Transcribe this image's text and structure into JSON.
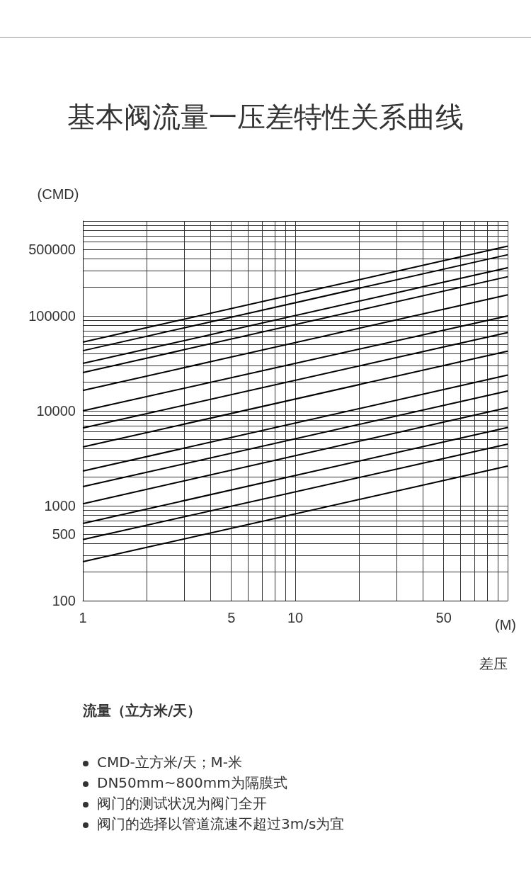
{
  "chart_data": {
    "type": "line",
    "title": "基本阀流量一压差特性关系曲线",
    "xlabel": "(M)",
    "ylabel": "(CMD)",
    "log": "xy",
    "grid": true,
    "marker": "none",
    "line_style": "solid",
    "x": [
      1,
      100
    ],
    "xlim": [
      1,
      100
    ],
    "xticks": [
      1,
      {
        "value": 2,
        "label": null
      },
      {
        "value": 3,
        "label": null
      },
      {
        "value": 4,
        "label": null
      },
      5,
      {
        "value": 6,
        "label": null
      },
      {
        "value": 7,
        "label": null
      },
      {
        "value": 8,
        "label": null
      },
      {
        "value": 9,
        "label": null
      },
      10,
      {
        "value": 20,
        "label": null
      },
      {
        "value": 30,
        "label": null
      },
      {
        "value": 40,
        "label": null
      },
      50,
      {
        "value": 60,
        "label": null
      },
      {
        "value": 70,
        "label": null
      },
      {
        "value": 80,
        "label": null
      },
      {
        "value": 90,
        "label": null
      },
      {
        "value": 100,
        "label": null
      }
    ],
    "ylim": [
      100,
      1000000
    ],
    "yticks": [
      100,
      {
        "value": 200,
        "label": null
      },
      {
        "value": 300,
        "label": null
      },
      {
        "value": 400,
        "label": null
      },
      500,
      {
        "value": 600,
        "label": null
      },
      {
        "value": 700,
        "label": null
      },
      {
        "value": 800,
        "label": null
      },
      {
        "value": 900,
        "label": null
      },
      1000,
      {
        "value": 2000,
        "label": null
      },
      {
        "value": 3000,
        "label": null
      },
      {
        "value": 4000,
        "label": null
      },
      {
        "value": 5000,
        "label": null
      },
      {
        "value": 6000,
        "label": null
      },
      {
        "value": 7000,
        "label": null
      },
      {
        "value": 8000,
        "label": null
      },
      {
        "value": 9000,
        "label": null
      },
      10000,
      {
        "value": 20000,
        "label": null
      },
      {
        "value": 30000,
        "label": null
      },
      {
        "value": 40000,
        "label": null
      },
      {
        "value": 50000,
        "label": null
      },
      {
        "value": 60000,
        "label": null
      },
      {
        "value": 70000,
        "label": null
      },
      {
        "value": 80000,
        "label": null
      },
      {
        "value": 90000,
        "label": null
      },
      100000,
      {
        "value": 200000,
        "label": null
      },
      {
        "value": 300000,
        "label": null
      },
      {
        "value": 400000,
        "label": null
      },
      500000,
      {
        "value": 600000,
        "label": null
      },
      {
        "value": 700000,
        "label": null
      },
      {
        "value": 800000,
        "label": null
      },
      {
        "value": 900000,
        "label": null
      },
      {
        "value": 1000000,
        "label": null
      }
    ],
    "series": [
      {
        "color": "#000000",
        "values": [
          53000,
          543000
        ]
      },
      {
        "color": "#000000",
        "values": [
          43000,
          441000
        ]
      },
      {
        "color": "#000000",
        "values": [
          31600,
          322000
        ]
      },
      {
        "color": "#000000",
        "values": [
          25300,
          259000
        ]
      },
      {
        "color": "#000000",
        "values": [
          16400,
          167000
        ]
      },
      {
        "color": "#000000",
        "values": [
          10000,
          100000
        ]
      },
      {
        "color": "#000000",
        "values": [
          6600,
          66700
        ]
      },
      {
        "color": "#000000",
        "values": [
          4160,
          42600
        ]
      },
      {
        "color": "#000000",
        "values": [
          2320,
          23800
        ]
      },
      {
        "color": "#000000",
        "values": [
          1590,
          16200
        ]
      },
      {
        "color": "#000000",
        "values": [
          1050,
          10800
        ]
      },
      {
        "color": "#000000",
        "values": [
          650,
          6670
        ]
      },
      {
        "color": "#000000",
        "values": [
          440,
          4460
        ]
      },
      {
        "color": "#000000",
        "values": [
          257,
          2620
        ]
      }
    ],
    "annotations": [
      "差压",
      "流量（立方米/天）",
      "CMD-立方米/天；M-米",
      "DN50mm~800mm为隔膜式",
      "阀门的测试状况为阀门全开",
      "阀门的选择以管道流速不超过3m/s为宜"
    ]
  }
}
